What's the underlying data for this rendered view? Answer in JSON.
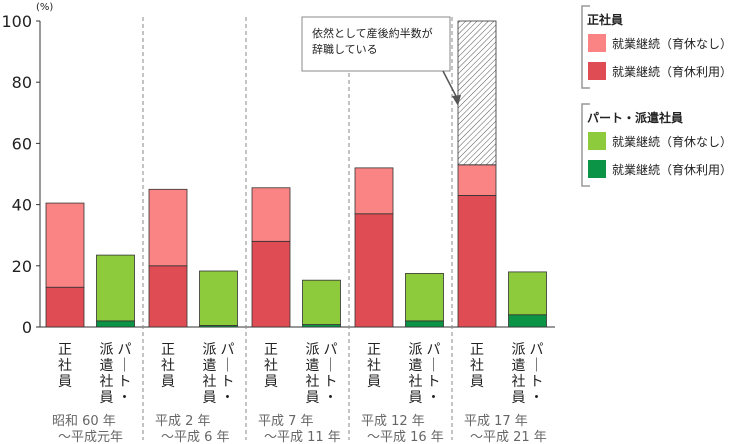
{
  "chart_data": {
    "type": "bar",
    "stacked": true,
    "y_unit": "(%)",
    "ylim": [
      0,
      100
    ],
    "yticks": [
      0,
      20,
      40,
      60,
      80,
      100
    ],
    "periods": [
      {
        "line1": "昭和 60 年",
        "line2": "〜平成元年"
      },
      {
        "line1": "平成 2 年",
        "line2": "〜平成 6 年"
      },
      {
        "line1": "平成 7 年",
        "line2": "〜平成 11 年"
      },
      {
        "line1": "平成 12 年",
        "line2": "〜平成 16 年"
      },
      {
        "line1": "平成 17 年",
        "line2": "〜平成 21 年"
      }
    ],
    "bar_groups": [
      {
        "label": "正社員",
        "series": [
          "就業継続（育休利用）",
          "就業継続（育休なし）"
        ]
      },
      {
        "label": "パート・派遣社員",
        "label_columns": [
          "パート・",
          "派遣社員"
        ],
        "series": [
          "就業継続（育休利用）",
          "就業継続（育休なし）"
        ]
      }
    ],
    "regular": {
      "ikukyu_use": [
        13.0,
        20.0,
        28.0,
        37.0,
        43.0
      ],
      "no_ikukyu": [
        27.5,
        25.0,
        17.5,
        15.0,
        10.0
      ]
    },
    "part": {
      "ikukyu_use": [
        2.0,
        0.5,
        0.8,
        2.0,
        4.0
      ],
      "no_ikukyu": [
        21.5,
        17.8,
        14.5,
        15.5,
        14.0
      ]
    },
    "hatched_top": {
      "period_index": 4,
      "value": 100
    },
    "annotation": {
      "lines": [
        "依然として産後約半数が",
        "辞職している"
      ]
    },
    "legend": [
      {
        "title": "正社員",
        "items": [
          {
            "label": "就業継続（育休なし）",
            "color": "#fa8484"
          },
          {
            "label": "就業継続（育休利用）",
            "color": "#e04c54"
          }
        ]
      },
      {
        "title": "パート・派遣社員",
        "items": [
          {
            "label": "就業継続（育休なし）",
            "color": "#8dcb3d"
          },
          {
            "label": "就業継続（育休利用）",
            "color": "#0b9445"
          }
        ]
      }
    ],
    "colors": {
      "regular_no": "#fa8484",
      "regular_use": "#e04c54",
      "part_no": "#8dcb3d",
      "part_use": "#0b9445"
    }
  }
}
